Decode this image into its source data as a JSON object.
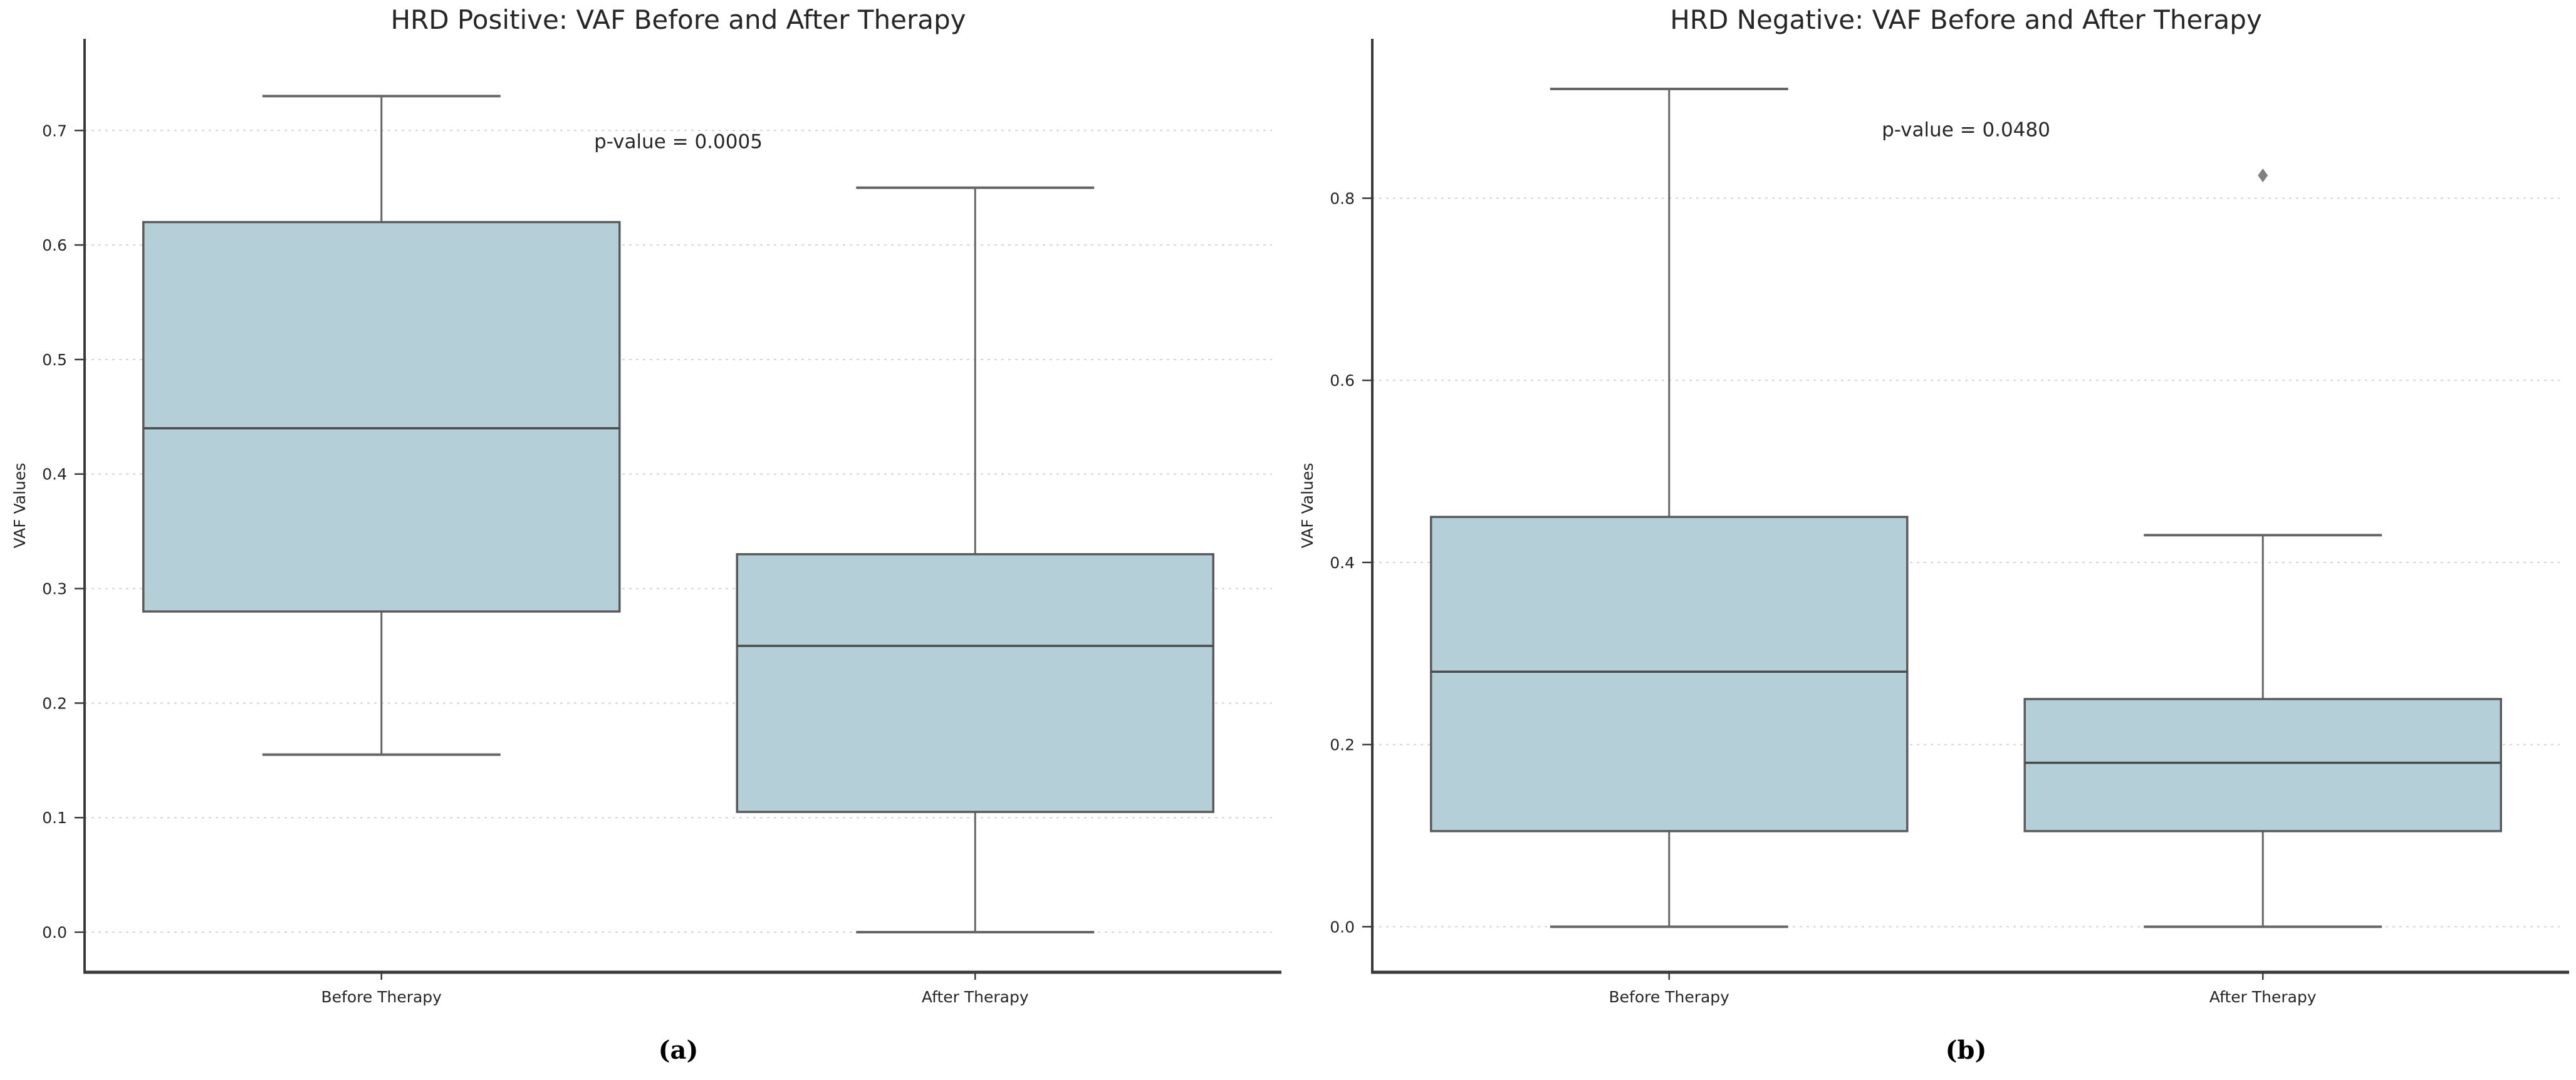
{
  "page": {
    "background": "#ffffff"
  },
  "style": {
    "box_fill": "#b5cfd8",
    "box_edge": "#5a5a5a",
    "median_color": "#4a4a4a",
    "whisker_color": "#666666",
    "cap_color": "#666666",
    "grid_color": "#d4d4d4",
    "spine_color": "#3a3a3a",
    "text_color": "#262626",
    "outlier_color": "#808080"
  },
  "chart_data": [
    {
      "type": "box",
      "title": "HRD Positive: VAF Before and After Therapy",
      "annotation": "p-value = 0.0005",
      "annotation_pos": {
        "x_frac": 0.5,
        "y_value": 0.69
      },
      "ylabel": "VAF Values",
      "xlabel": "",
      "categories": [
        "Before Therapy",
        "After Therapy"
      ],
      "yticks": [
        0.0,
        0.1,
        0.2,
        0.3,
        0.4,
        0.5,
        0.6,
        0.7
      ],
      "ytick_labels": [
        "0.0",
        "0.1",
        "0.2",
        "0.3",
        "0.4",
        "0.5",
        "0.6",
        "0.7"
      ],
      "ylim": [
        -0.035,
        0.78
      ],
      "grid": "horizontal-dashed",
      "legend": "none",
      "caption": "(a)",
      "boxes": [
        {
          "category": "Before Therapy",
          "whisker_low": 0.155,
          "q1": 0.28,
          "median": 0.44,
          "q3": 0.62,
          "whisker_high": 0.73,
          "outliers": []
        },
        {
          "category": "After Therapy",
          "whisker_low": 0.0,
          "q1": 0.105,
          "median": 0.25,
          "q3": 0.33,
          "whisker_high": 0.65,
          "outliers": []
        }
      ]
    },
    {
      "type": "box",
      "title": "HRD Negative: VAF Before and After Therapy",
      "annotation": "p-value = 0.0480",
      "annotation_pos": {
        "x_frac": 0.5,
        "y_value": 0.875
      },
      "ylabel": "VAF Values",
      "xlabel": "",
      "categories": [
        "Before Therapy",
        "After Therapy"
      ],
      "yticks": [
        0.0,
        0.2,
        0.4,
        0.6,
        0.8
      ],
      "ytick_labels": [
        "0.0",
        "0.2",
        "0.4",
        "0.6",
        "0.8"
      ],
      "ylim": [
        -0.05,
        0.975
      ],
      "grid": "horizontal-dashed",
      "legend": "none",
      "caption": "(b)",
      "boxes": [
        {
          "category": "Before Therapy",
          "whisker_low": 0.0,
          "q1": 0.105,
          "median": 0.28,
          "q3": 0.45,
          "whisker_high": 0.92,
          "outliers": []
        },
        {
          "category": "After Therapy",
          "whisker_low": 0.0,
          "q1": 0.105,
          "median": 0.18,
          "q3": 0.25,
          "whisker_high": 0.43,
          "outliers": [
            0.825
          ]
        }
      ]
    }
  ]
}
